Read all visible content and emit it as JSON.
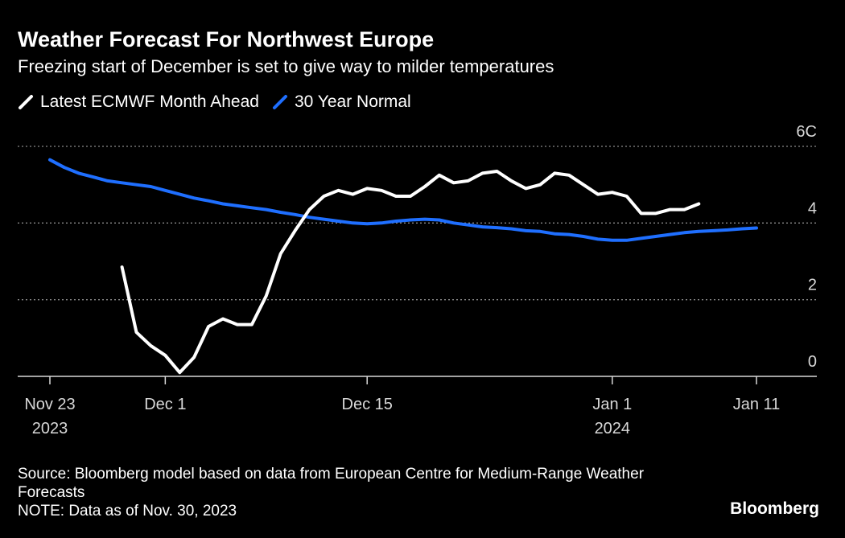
{
  "title": "Weather Forecast For Northwest Europe",
  "subtitle": "Freezing start of December is set to give way to milder temperatures",
  "legend": [
    {
      "label": "Latest ECMWF Month Ahead",
      "color": "#ffffff"
    },
    {
      "label": "30 Year Normal",
      "color": "#1f6fff"
    }
  ],
  "footer": {
    "source": "Source: Bloomberg model based on data from European Centre for Medium-Range Weather Forecasts",
    "note": "NOTE: Data as of Nov. 30, 2023"
  },
  "brand": "Bloomberg",
  "chart_data": {
    "type": "line",
    "title": "Weather Forecast For Northwest Europe",
    "subtitle": "Freezing start of December is set to give way to milder temperatures",
    "xlabel": "",
    "ylabel": "",
    "ylim": [
      0,
      6
    ],
    "xlim": [
      "2023-11-23",
      "2024-01-13"
    ],
    "y_ticks": [
      {
        "value": 0,
        "label": "0"
      },
      {
        "value": 2,
        "label": "2"
      },
      {
        "value": 4,
        "label": "4"
      },
      {
        "value": 6,
        "label": "6C"
      }
    ],
    "x_ticks": [
      {
        "date": "2023-11-23",
        "label": "Nov 23",
        "sublabel": "2023"
      },
      {
        "date": "2023-12-01",
        "label": "Dec 1",
        "sublabel": ""
      },
      {
        "date": "2023-12-15",
        "label": "Dec 15",
        "sublabel": ""
      },
      {
        "date": "2024-01-01",
        "label": "Jan 1",
        "sublabel": "2024"
      },
      {
        "date": "2024-01-11",
        "label": "Jan 11",
        "sublabel": ""
      }
    ],
    "grid": true,
    "legend_position": "top-left",
    "series": [
      {
        "name": "Latest ECMWF Month Ahead",
        "color": "#ffffff",
        "points": [
          [
            "2023-11-28",
            2.85
          ],
          [
            "2023-11-29",
            1.15
          ],
          [
            "2023-11-30",
            0.8
          ],
          [
            "2023-12-01",
            0.55
          ],
          [
            "2023-12-02",
            0.1
          ],
          [
            "2023-12-03",
            0.5
          ],
          [
            "2023-12-04",
            1.3
          ],
          [
            "2023-12-05",
            1.5
          ],
          [
            "2023-12-06",
            1.35
          ],
          [
            "2023-12-07",
            1.35
          ],
          [
            "2023-12-08",
            2.1
          ],
          [
            "2023-12-09",
            3.2
          ],
          [
            "2023-12-10",
            3.8
          ],
          [
            "2023-12-11",
            4.35
          ],
          [
            "2023-12-12",
            4.7
          ],
          [
            "2023-12-13",
            4.85
          ],
          [
            "2023-12-14",
            4.75
          ],
          [
            "2023-12-15",
            4.9
          ],
          [
            "2023-12-16",
            4.85
          ],
          [
            "2023-12-17",
            4.7
          ],
          [
            "2023-12-18",
            4.7
          ],
          [
            "2023-12-19",
            4.95
          ],
          [
            "2023-12-20",
            5.25
          ],
          [
            "2023-12-21",
            5.05
          ],
          [
            "2023-12-22",
            5.1
          ],
          [
            "2023-12-23",
            5.3
          ],
          [
            "2023-12-24",
            5.35
          ],
          [
            "2023-12-25",
            5.1
          ],
          [
            "2023-12-26",
            4.9
          ],
          [
            "2023-12-27",
            5.0
          ],
          [
            "2023-12-28",
            5.3
          ],
          [
            "2023-12-29",
            5.25
          ],
          [
            "2023-12-30",
            5.0
          ],
          [
            "2023-12-31",
            4.75
          ],
          [
            "2024-01-01",
            4.8
          ],
          [
            "2024-01-02",
            4.7
          ],
          [
            "2024-01-03",
            4.25
          ],
          [
            "2024-01-04",
            4.25
          ],
          [
            "2024-01-05",
            4.35
          ],
          [
            "2024-01-06",
            4.35
          ],
          [
            "2024-01-07",
            4.5
          ]
        ]
      },
      {
        "name": "30 Year Normal",
        "color": "#1f6fff",
        "points": [
          [
            "2023-11-23",
            5.65
          ],
          [
            "2023-11-24",
            5.45
          ],
          [
            "2023-11-25",
            5.3
          ],
          [
            "2023-11-26",
            5.2
          ],
          [
            "2023-11-27",
            5.1
          ],
          [
            "2023-11-28",
            5.05
          ],
          [
            "2023-11-29",
            5.0
          ],
          [
            "2023-11-30",
            4.95
          ],
          [
            "2023-12-01",
            4.85
          ],
          [
            "2023-12-02",
            4.75
          ],
          [
            "2023-12-03",
            4.65
          ],
          [
            "2023-12-04",
            4.58
          ],
          [
            "2023-12-05",
            4.5
          ],
          [
            "2023-12-06",
            4.45
          ],
          [
            "2023-12-07",
            4.4
          ],
          [
            "2023-12-08",
            4.35
          ],
          [
            "2023-12-09",
            4.28
          ],
          [
            "2023-12-10",
            4.22
          ],
          [
            "2023-12-11",
            4.15
          ],
          [
            "2023-12-12",
            4.1
          ],
          [
            "2023-12-13",
            4.05
          ],
          [
            "2023-12-14",
            4.0
          ],
          [
            "2023-12-15",
            3.98
          ],
          [
            "2023-12-16",
            4.0
          ],
          [
            "2023-12-17",
            4.05
          ],
          [
            "2023-12-18",
            4.08
          ],
          [
            "2023-12-19",
            4.1
          ],
          [
            "2023-12-20",
            4.08
          ],
          [
            "2023-12-21",
            4.0
          ],
          [
            "2023-12-22",
            3.95
          ],
          [
            "2023-12-23",
            3.9
          ],
          [
            "2023-12-24",
            3.88
          ],
          [
            "2023-12-25",
            3.85
          ],
          [
            "2023-12-26",
            3.8
          ],
          [
            "2023-12-27",
            3.78
          ],
          [
            "2023-12-28",
            3.72
          ],
          [
            "2023-12-29",
            3.7
          ],
          [
            "2023-12-30",
            3.65
          ],
          [
            "2023-12-31",
            3.58
          ],
          [
            "2024-01-01",
            3.55
          ],
          [
            "2024-01-02",
            3.55
          ],
          [
            "2024-01-03",
            3.6
          ],
          [
            "2024-01-04",
            3.65
          ],
          [
            "2024-01-05",
            3.7
          ],
          [
            "2024-01-06",
            3.75
          ],
          [
            "2024-01-07",
            3.78
          ],
          [
            "2024-01-08",
            3.8
          ],
          [
            "2024-01-09",
            3.82
          ],
          [
            "2024-01-10",
            3.85
          ],
          [
            "2024-01-11",
            3.87
          ]
        ]
      }
    ]
  }
}
